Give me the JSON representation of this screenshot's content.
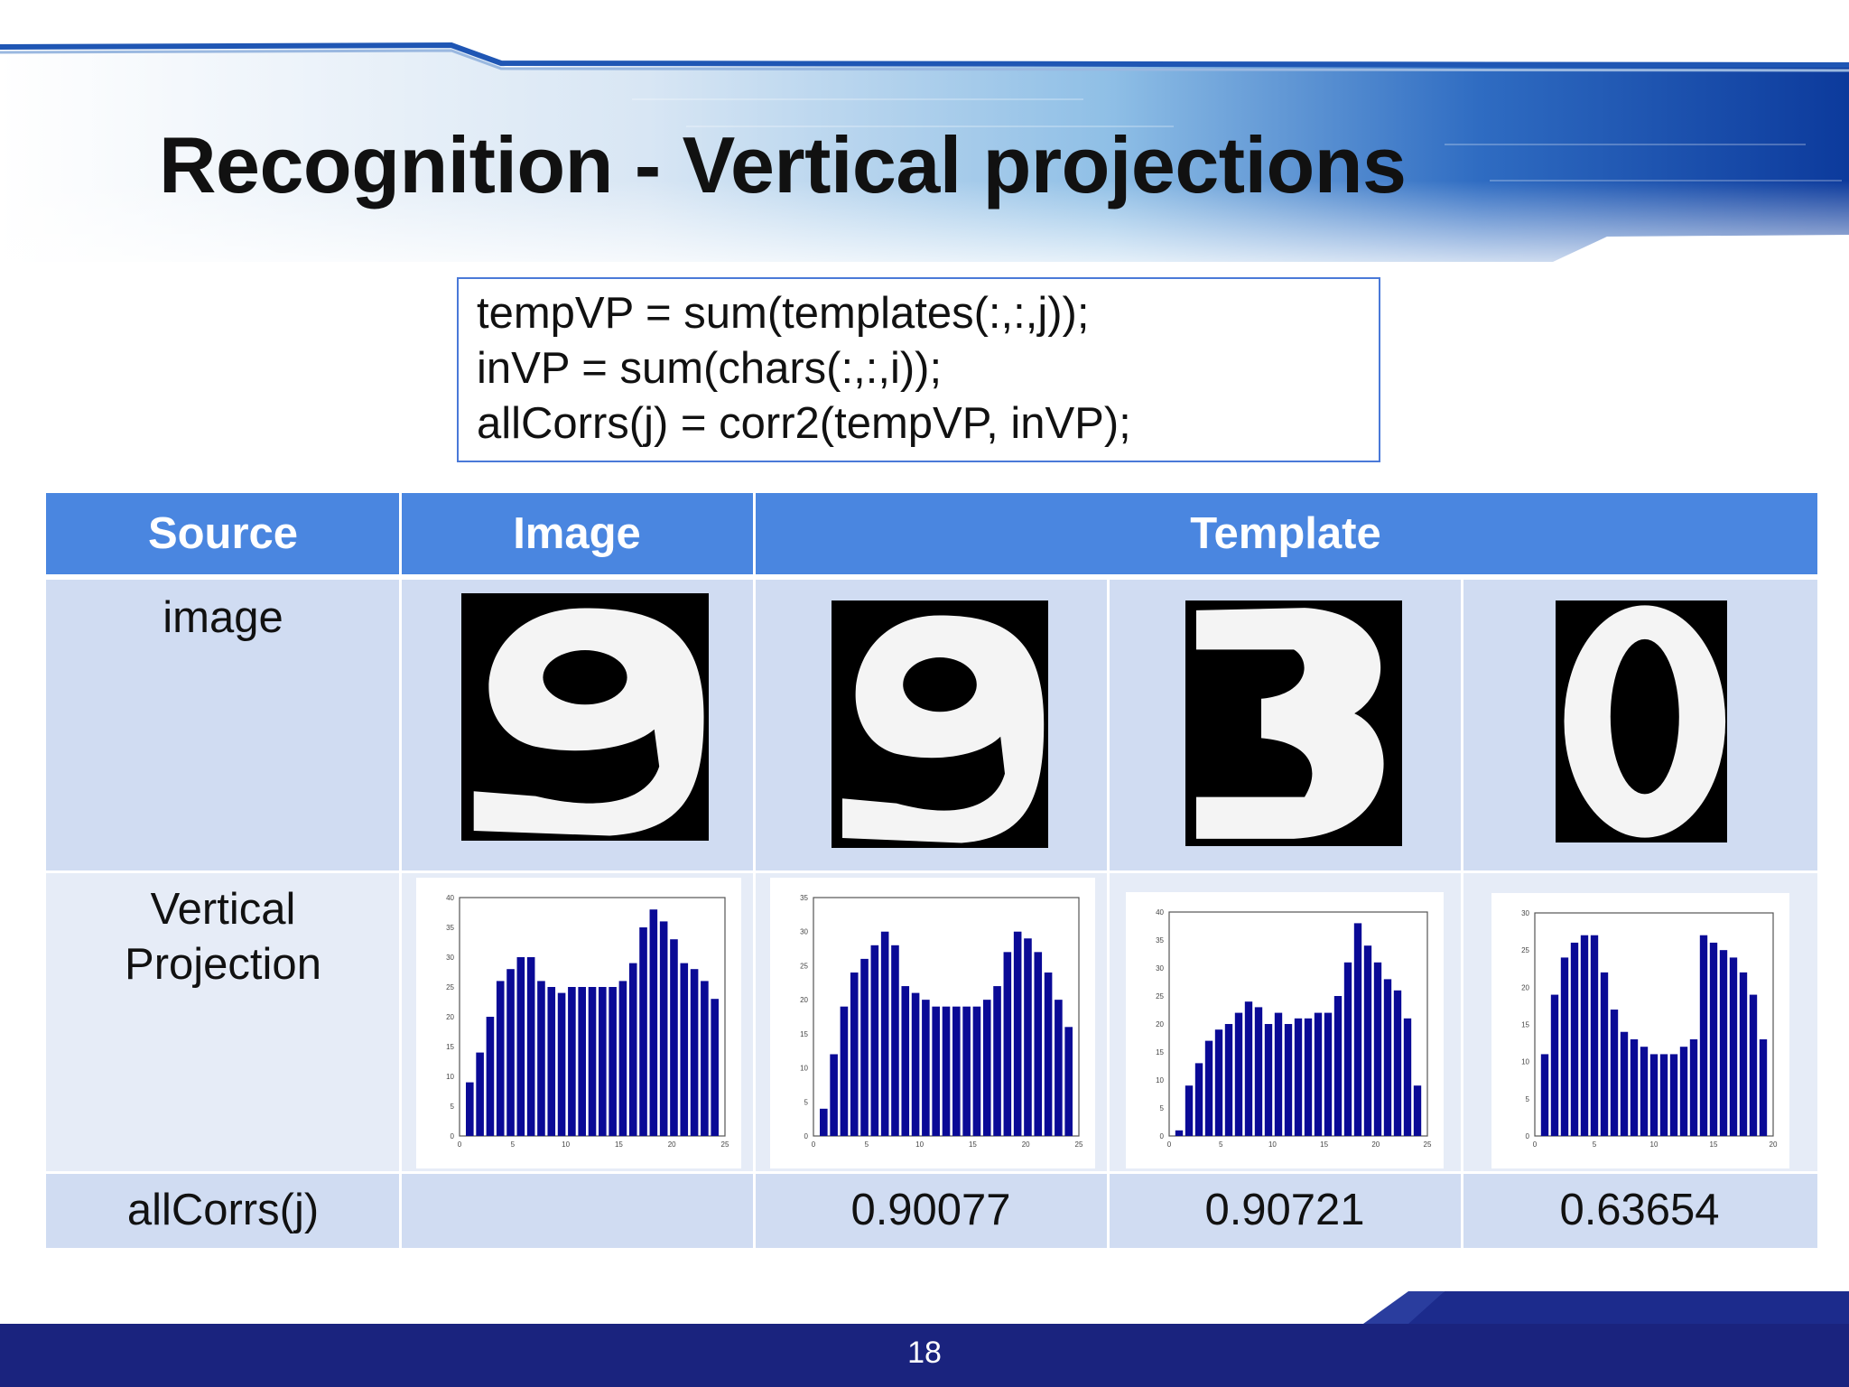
{
  "slide": {
    "title": "Recognition - Vertical projections",
    "page_number": "18"
  },
  "code": {
    "lines": [
      "tempVP = sum(templates(:,:,j));",
      "inVP = sum(chars(:,:,i));",
      "allCorrs(j) = corr2(tempVP, inVP);"
    ]
  },
  "table": {
    "headers": {
      "source": "Source",
      "image": "Image",
      "template": "Template"
    },
    "row_labels": {
      "image": "image",
      "projection_line1": "Vertical",
      "projection_line2": "Projection",
      "corr": "allCorrs(j)"
    },
    "digits": [
      "9",
      "9",
      "3",
      "0"
    ],
    "correlations": [
      "0.90077",
      "0.90721",
      "0.63654"
    ]
  },
  "chart_data": [
    {
      "type": "bar",
      "series": [
        {
          "values": [
            9,
            14,
            20,
            26,
            28,
            30,
            30,
            26,
            25,
            24,
            25,
            25,
            25,
            25,
            25,
            26,
            29,
            35,
            38,
            36,
            33,
            29,
            28,
            26,
            23
          ]
        }
      ],
      "ylim": [
        0,
        40
      ],
      "yticks": [
        "40",
        "35",
        "30",
        "25",
        "20",
        "15",
        "10",
        "5",
        "0"
      ],
      "xticks": [
        "0",
        "5",
        "10",
        "15",
        "20",
        "25"
      ]
    },
    {
      "type": "bar",
      "series": [
        {
          "values": [
            4,
            12,
            19,
            24,
            26,
            28,
            30,
            28,
            22,
            21,
            20,
            19,
            19,
            19,
            19,
            19,
            20,
            22,
            27,
            30,
            29,
            27,
            24,
            20,
            16
          ]
        }
      ],
      "ylim": [
        0,
        35
      ],
      "yticks": [
        "35",
        "30",
        "25",
        "20",
        "15",
        "10",
        "5",
        "0"
      ],
      "xticks": [
        "0",
        "5",
        "10",
        "15",
        "20",
        "25"
      ]
    },
    {
      "type": "bar",
      "series": [
        {
          "values": [
            1,
            9,
            13,
            17,
            19,
            20,
            22,
            24,
            23,
            20,
            22,
            20,
            21,
            21,
            22,
            22,
            25,
            31,
            38,
            34,
            31,
            28,
            26,
            21,
            9
          ]
        }
      ],
      "ylim": [
        0,
        40
      ],
      "yticks": [
        "40",
        "35",
        "30",
        "25",
        "20",
        "15",
        "10",
        "5",
        "0"
      ],
      "xticks": [
        "0",
        "5",
        "10",
        "15",
        "20",
        "25"
      ]
    },
    {
      "type": "bar",
      "series": [
        {
          "values": [
            11,
            19,
            24,
            26,
            27,
            27,
            22,
            17,
            14,
            13,
            12,
            11,
            11,
            11,
            12,
            13,
            27,
            26,
            25,
            24,
            22,
            19,
            13
          ]
        }
      ],
      "ylim": [
        0,
        30
      ],
      "yticks": [
        "30",
        "25",
        "20",
        "15",
        "10",
        "5",
        "0"
      ],
      "xticks": [
        "0",
        "5",
        "10",
        "15",
        "20"
      ]
    }
  ],
  "colors": {
    "header": "#4a86e0",
    "row": "#d0dcf2",
    "bar": "#0a0a96",
    "footer": "#1a237e"
  }
}
